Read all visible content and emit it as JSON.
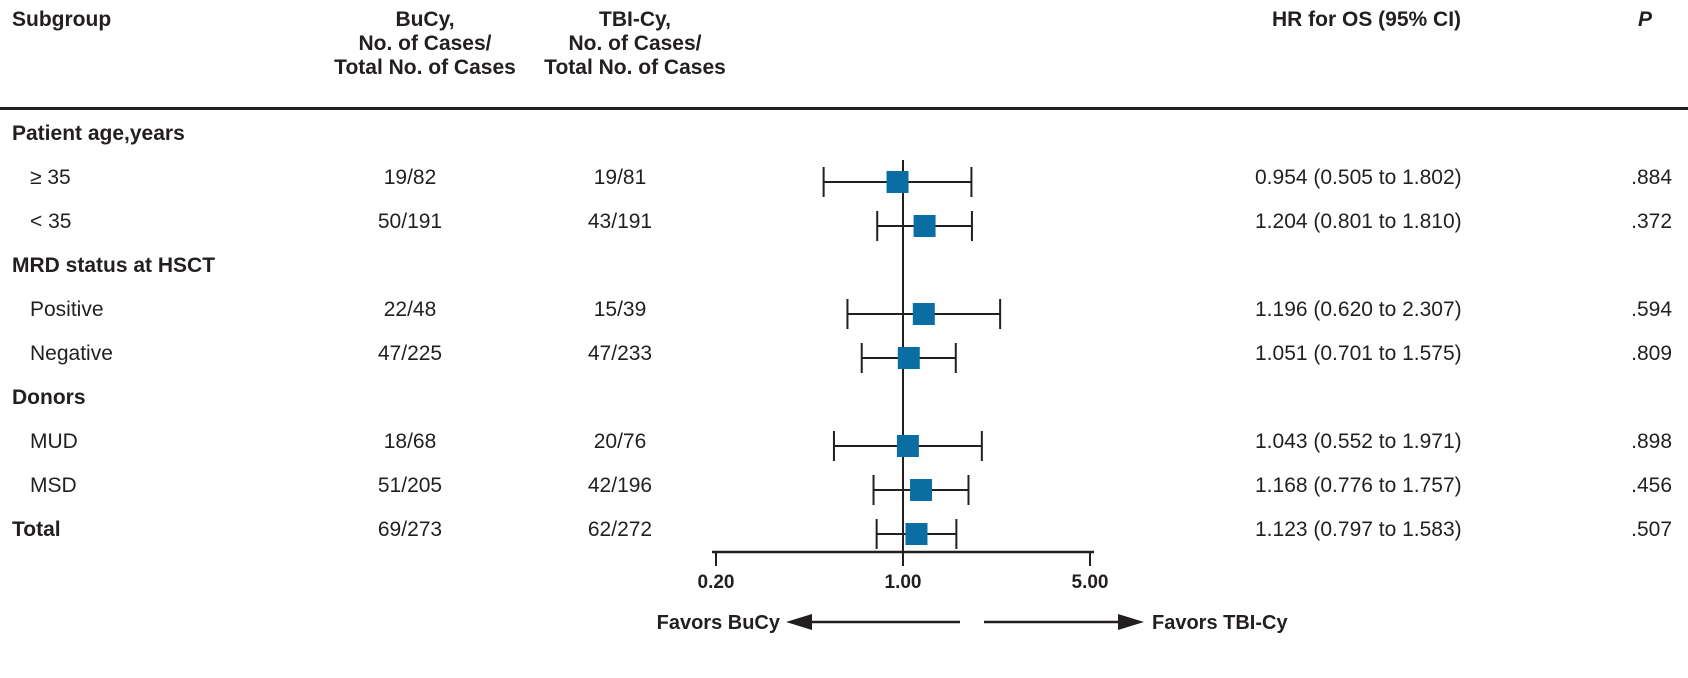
{
  "header": {
    "subgroup": "Subgroup",
    "bucy": [
      "BuCy,",
      "No. of Cases/",
      "Total No. of Cases"
    ],
    "tbicy": [
      "TBI-Cy,",
      "No. of Cases/",
      "Total No. of Cases"
    ],
    "hr": "HR for OS (95% CI)",
    "p": "P"
  },
  "rows": [
    {
      "type": "section",
      "label": "Patient age,years"
    },
    {
      "type": "data",
      "label": "≥ 35",
      "bucy": "19/82",
      "tbicy": "19/81",
      "hr_text": "0.954 (0.505 to 1.802)",
      "p": ".884",
      "hr": 0.954,
      "lo": 0.505,
      "hi": 1.802
    },
    {
      "type": "data",
      "label": "< 35",
      "bucy": "50/191",
      "tbicy": "43/191",
      "hr_text": "1.204 (0.801 to 1.810)",
      "p": ".372",
      "hr": 1.204,
      "lo": 0.801,
      "hi": 1.81
    },
    {
      "type": "section",
      "label": "MRD status at HSCT"
    },
    {
      "type": "data",
      "label": "Positive",
      "bucy": "22/48",
      "tbicy": "15/39",
      "hr_text": "1.196 (0.620 to 2.307)",
      "p": ".594",
      "hr": 1.196,
      "lo": 0.62,
      "hi": 2.307
    },
    {
      "type": "data",
      "label": "Negative",
      "bucy": "47/225",
      "tbicy": "47/233",
      "hr_text": "1.051 (0.701 to 1.575)",
      "p": ".809",
      "hr": 1.051,
      "lo": 0.701,
      "hi": 1.575
    },
    {
      "type": "section",
      "label": "Donors"
    },
    {
      "type": "data",
      "label": "MUD",
      "bucy": "18/68",
      "tbicy": "20/76",
      "hr_text": "1.043 (0.552 to 1.971)",
      "p": ".898",
      "hr": 1.043,
      "lo": 0.552,
      "hi": 1.971
    },
    {
      "type": "data",
      "label": "MSD",
      "bucy": "51/205",
      "tbicy": "42/196",
      "hr_text": "1.168 (0.776 to 1.757)",
      "p": ".456",
      "hr": 1.168,
      "lo": 0.776,
      "hi": 1.757
    },
    {
      "type": "total",
      "label": "Total",
      "bucy": "69/273",
      "tbicy": "62/272",
      "hr_text": "1.123 (0.797 to 1.583)",
      "p": ".507",
      "hr": 1.123,
      "lo": 0.797,
      "hi": 1.583
    }
  ],
  "chart_data": {
    "type": "forest",
    "scale": "log",
    "xlim": [
      0.2,
      5.0
    ],
    "ticks": [
      0.2,
      1.0,
      5.0
    ],
    "tick_labels": [
      "0.20",
      "1.00",
      "5.00"
    ],
    "reference": 1.0,
    "favors_left": "Favors BuCy",
    "favors_right": "Favors TBI-Cy",
    "marker_color": "#0b6ea3",
    "series": [
      {
        "label": "≥ 35",
        "hr": 0.954,
        "lo": 0.505,
        "hi": 1.802
      },
      {
        "label": "< 35",
        "hr": 1.204,
        "lo": 0.801,
        "hi": 1.81
      },
      {
        "label": "Positive",
        "hr": 1.196,
        "lo": 0.62,
        "hi": 2.307
      },
      {
        "label": "Negative",
        "hr": 1.051,
        "lo": 0.701,
        "hi": 1.575
      },
      {
        "label": "MUD",
        "hr": 1.043,
        "lo": 0.552,
        "hi": 1.971
      },
      {
        "label": "MSD",
        "hr": 1.168,
        "lo": 0.776,
        "hi": 1.757
      },
      {
        "label": "Total",
        "hr": 1.123,
        "lo": 0.797,
        "hi": 1.583
      }
    ]
  }
}
